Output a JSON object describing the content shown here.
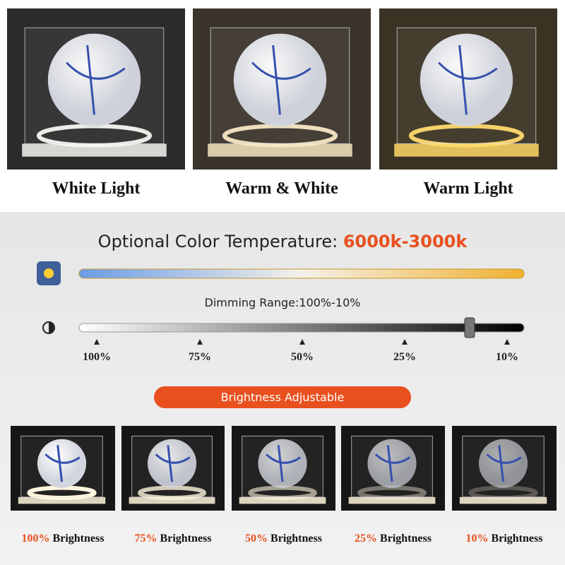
{
  "top_panels": [
    {
      "caption": "White Light"
    },
    {
      "caption": "Warm & White"
    },
    {
      "caption": "Warm Light"
    }
  ],
  "heading": {
    "text": "Optional Color Temperature:",
    "highlight": "6000k-3000k"
  },
  "dimming_label": "Dimming Range:100%-10%",
  "scale_labels": [
    "100%",
    "75%",
    "50%",
    "25%",
    "10%"
  ],
  "button": "Brightness Adjustable",
  "bottom_panels": [
    {
      "percent": "100%",
      "label": "Brightness"
    },
    {
      "percent": "75%",
      "label": "Brightness"
    },
    {
      "percent": "50%",
      "label": "Brightness"
    },
    {
      "percent": "25%",
      "label": "Brightness"
    },
    {
      "percent": "10%",
      "label": "Brightness"
    }
  ]
}
